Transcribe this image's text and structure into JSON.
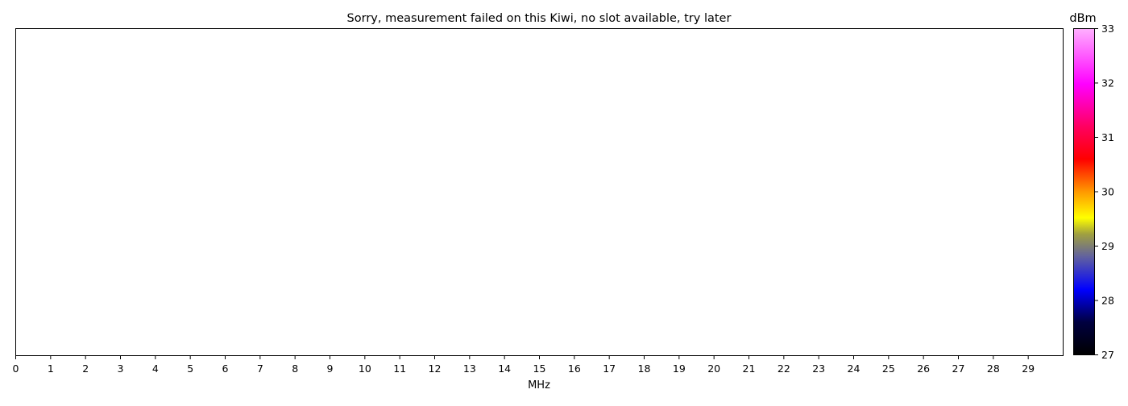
{
  "chart_data": {
    "type": "heatmap",
    "title": "Sorry, measurement failed on this Kiwi, no slot available, try later",
    "xlabel": "MHz",
    "ylabel": "",
    "xlim": [
      0,
      30
    ],
    "x_ticks": [
      "0",
      "1",
      "2",
      "3",
      "4",
      "5",
      "6",
      "7",
      "8",
      "9",
      "10",
      "11",
      "12",
      "13",
      "14",
      "15",
      "16",
      "17",
      "18",
      "19",
      "20",
      "21",
      "22",
      "23",
      "24",
      "25",
      "26",
      "27",
      "28",
      "29"
    ],
    "values": [],
    "grid": false,
    "colorbar": {
      "label": "dBm",
      "range": [
        27,
        33
      ],
      "ticks": [
        "27",
        "28",
        "29",
        "30",
        "31",
        "32",
        "33"
      ],
      "colors": [
        {
          "at": 0.0,
          "color": "#000000"
        },
        {
          "at": 0.1,
          "color": "#000040"
        },
        {
          "at": 0.2,
          "color": "#0000ff"
        },
        {
          "at": 0.3,
          "color": "#6060a0"
        },
        {
          "at": 0.37,
          "color": "#a0a040"
        },
        {
          "at": 0.42,
          "color": "#ffff00"
        },
        {
          "at": 0.5,
          "color": "#ff9900"
        },
        {
          "at": 0.6,
          "color": "#ff0000"
        },
        {
          "at": 0.7,
          "color": "#ff0060"
        },
        {
          "at": 0.83,
          "color": "#ff00ff"
        },
        {
          "at": 1.0,
          "color": "#ffb0ff"
        }
      ]
    }
  }
}
